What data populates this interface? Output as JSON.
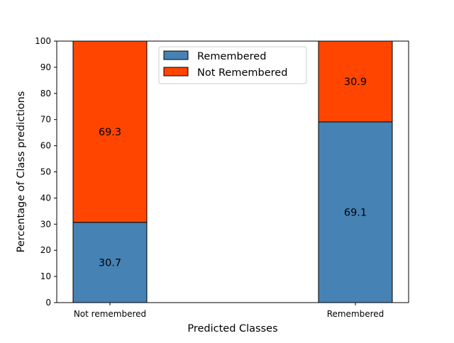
{
  "chart_data": {
    "type": "bar",
    "stacked": true,
    "categories": [
      "Not remembered",
      "Remembered"
    ],
    "series": [
      {
        "name": "Remembered",
        "color": "#4682b4",
        "values": [
          30.7,
          69.1
        ]
      },
      {
        "name": "Not Remembered",
        "color": "#ff4500",
        "values": [
          69.3,
          30.9
        ]
      }
    ],
    "xlabel": "Predicted Classes",
    "ylabel": "Percentage of Class predictions",
    "ylim": [
      0,
      100
    ],
    "yticks": [
      0,
      10,
      20,
      30,
      40,
      50,
      60,
      70,
      80,
      90,
      100
    ],
    "grid": false,
    "legend_position": "top-center",
    "data_labels": true
  }
}
